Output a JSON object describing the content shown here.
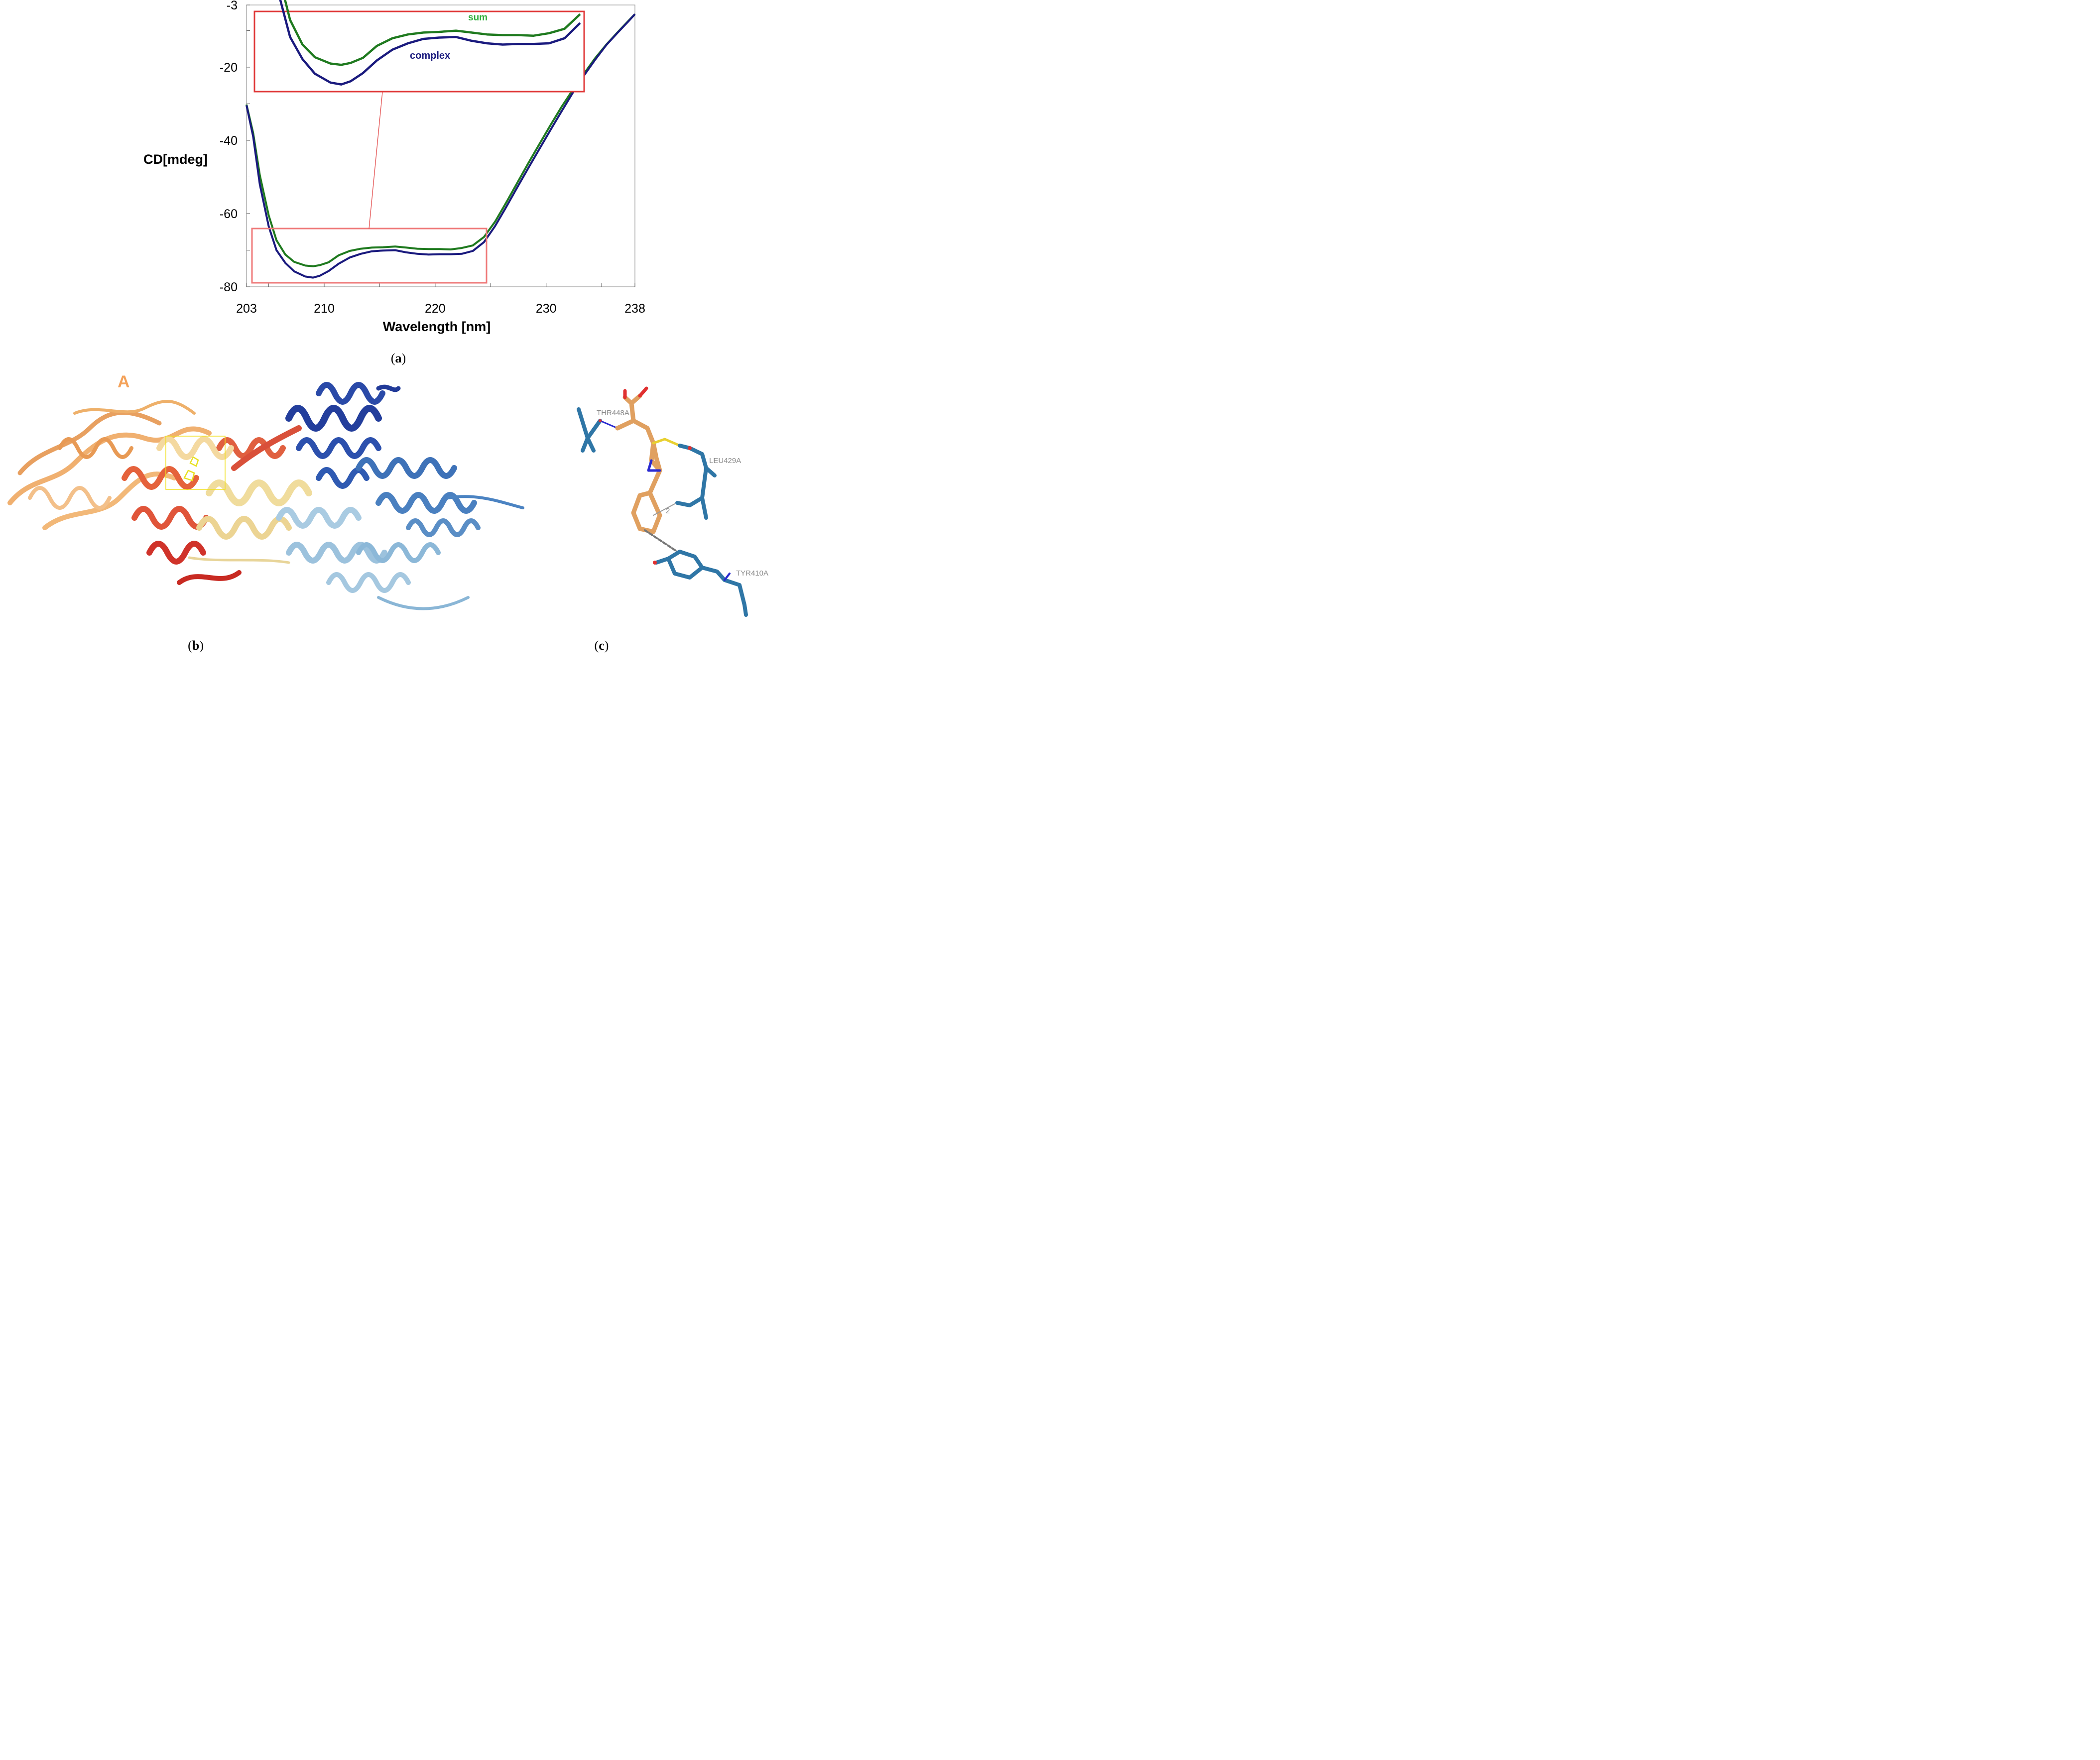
{
  "chart_data": {
    "type": "line",
    "xlabel": "Wavelength [nm]",
    "ylabel": "CD[mdeg]",
    "xlim": [
      203,
      238
    ],
    "ylim": [
      -80,
      -3
    ],
    "xticks": [
      "203",
      "210",
      "220",
      "230",
      "238"
    ],
    "yticks": [
      "-3",
      "-20",
      "-40",
      "-60",
      "-80"
    ],
    "grid": false,
    "series": [
      {
        "name": "complex",
        "color": "#1a1a7e",
        "x": [
          203.0,
          203.6,
          204.2,
          205.0,
          205.7,
          206.5,
          207.3,
          208.3,
          209.0,
          209.6,
          210.4,
          211.3,
          212.3,
          213.3,
          214.3,
          215.3,
          216.4,
          217.4,
          218.4,
          219.4,
          220.4,
          221.4,
          222.4,
          223.4,
          224.4,
          225.4,
          226.4,
          227.4,
          228.4,
          229.4,
          230.4,
          231.4,
          232.4,
          233.4,
          234.4,
          235.4,
          236.4,
          237.4,
          238.0
        ],
        "y": [
          -30.4,
          -39.0,
          -52.0,
          -63.5,
          -70.0,
          -73.5,
          -75.8,
          -77.2,
          -77.5,
          -77.0,
          -75.7,
          -73.7,
          -72.0,
          -71.0,
          -70.3,
          -70.1,
          -70.0,
          -70.6,
          -71.0,
          -71.2,
          -71.1,
          -71.1,
          -71.0,
          -70.2,
          -67.8,
          -63.4,
          -58.2,
          -52.8,
          -47.5,
          -42.3,
          -37.1,
          -32.0,
          -27.0,
          -22.3,
          -18.0,
          -14.0,
          -10.7,
          -7.5,
          -5.5
        ]
      },
      {
        "name": "sum",
        "color": "#1f7a1f",
        "x": [
          203.0,
          203.6,
          204.2,
          205.0,
          205.7,
          206.5,
          207.3,
          208.3,
          209.0,
          209.6,
          210.4,
          211.3,
          212.3,
          213.3,
          214.3,
          215.3,
          216.4,
          217.4,
          218.4,
          219.4,
          220.4,
          221.4,
          222.4,
          223.4,
          224.4,
          225.4,
          226.4,
          227.4,
          228.4,
          229.4,
          230.4,
          231.4,
          232.4,
          233.4,
          234.4,
          235.4,
          236.4,
          237.4,
          238.0
        ],
        "y": [
          -30.2,
          -38.0,
          -49.5,
          -60.5,
          -67.3,
          -71.2,
          -73.2,
          -74.2,
          -74.4,
          -74.1,
          -73.3,
          -71.4,
          -70.2,
          -69.6,
          -69.3,
          -69.2,
          -69.0,
          -69.3,
          -69.6,
          -69.7,
          -69.7,
          -69.8,
          -69.4,
          -68.7,
          -66.4,
          -62.2,
          -57.0,
          -51.6,
          -46.2,
          -41.0,
          -35.8,
          -30.8,
          -26.2,
          -21.8,
          -17.6,
          -13.9,
          -10.6,
          -7.4,
          -5.5
        ]
      }
    ],
    "inset_labels": {
      "sum": "sum",
      "complex": "complex"
    }
  },
  "panel_labels": {
    "a": "a",
    "b": "b",
    "c": "c"
  },
  "chain_label": "A",
  "residues": {
    "thr": "THR448A",
    "leu": "LEU429A",
    "tyr": "TYR410A",
    "contact_count": "2"
  },
  "colors": {
    "complex": "#1a1a7e",
    "sum": "#1f7a1f",
    "sum_label": "#2fae3c",
    "zoom_box": "#e03a3a",
    "zoom_box_light": "#ef7a7a",
    "ligand": "#e0a060",
    "residue": "#2f76a6"
  }
}
